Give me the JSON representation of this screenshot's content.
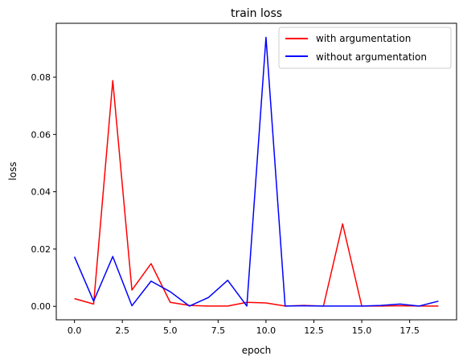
{
  "chart_data": {
    "type": "line",
    "title": "train loss",
    "xlabel": "epoch",
    "ylabel": "loss",
    "xlim": [
      -0.95,
      19.95
    ],
    "ylim": [
      -0.0047,
      0.0988
    ],
    "x_ticks": [
      0.0,
      2.5,
      5.0,
      7.5,
      10.0,
      12.5,
      15.0,
      17.5
    ],
    "x_tick_labels": [
      "0.0",
      "2.5",
      "5.0",
      "7.5",
      "10.0",
      "12.5",
      "15.0",
      "17.5"
    ],
    "y_ticks": [
      0.0,
      0.02,
      0.04,
      0.06,
      0.08
    ],
    "y_tick_labels": [
      "0.00",
      "0.02",
      "0.04",
      "0.06",
      "0.08"
    ],
    "grid": false,
    "legend_position": "top-right",
    "x": [
      0,
      1,
      2,
      3,
      4,
      5,
      6,
      7,
      8,
      9,
      10,
      11,
      12,
      13,
      14,
      15,
      16,
      17,
      18,
      19
    ],
    "series": [
      {
        "name": "with argumentation",
        "color": "#ff0000",
        "values": [
          0.0027,
          0.0008,
          0.0788,
          0.0057,
          0.0149,
          0.0014,
          0.0003,
          0.0001,
          0.0001,
          0.0014,
          0.0012,
          0.0001,
          0.0003,
          0.0001,
          0.0288,
          0.0001,
          0.0001,
          0.0002,
          0.0001,
          0.0001
        ]
      },
      {
        "name": "without argumentation",
        "color": "#0000ff",
        "values": [
          0.0173,
          0.0018,
          0.0174,
          0.0002,
          0.0088,
          0.0051,
          0.0001,
          0.0031,
          0.0091,
          0.0001,
          0.0939,
          0.0001,
          0.0002,
          0.0001,
          0.0001,
          0.0001,
          0.0003,
          0.0008,
          0.0001,
          0.0018
        ]
      }
    ]
  }
}
